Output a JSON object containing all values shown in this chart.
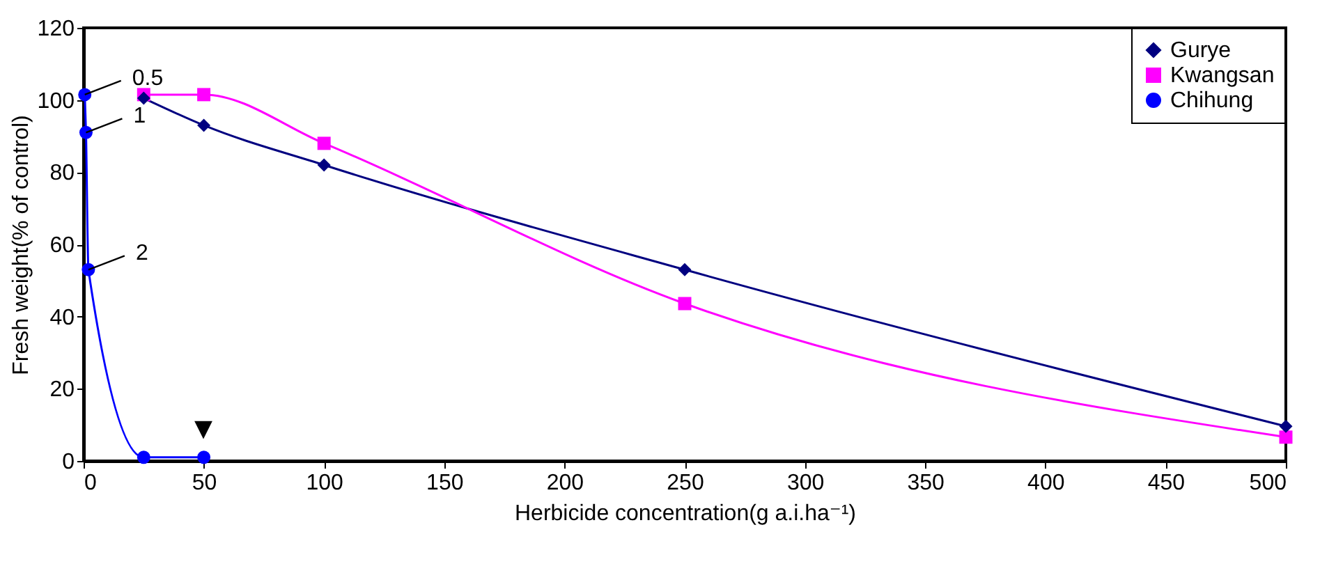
{
  "chart_data": {
    "type": "line",
    "xlabel": "Herbicide concentration(g a.i.ha⁻¹)",
    "ylabel": "Fresh weight(% of control)",
    "xlim": [
      0,
      500
    ],
    "xticks": [
      0,
      50,
      100,
      150,
      200,
      250,
      300,
      350,
      400,
      450,
      500
    ],
    "ylim": [
      0,
      120
    ],
    "yticks": [
      0,
      20,
      40,
      60,
      80,
      100,
      120
    ],
    "grid": false,
    "legend": "top right",
    "line_style": "solid",
    "series": [
      {
        "name": "Gurye",
        "color": "#000080",
        "marker": "diamond",
        "x": [
          25,
          50,
          100,
          250,
          500
        ],
        "values": [
          100.5,
          93,
          82,
          53,
          9.6
        ]
      },
      {
        "name": "Kwangsan",
        "color": "#ff00ff",
        "marker": "square",
        "x": [
          25,
          50,
          100,
          250,
          500
        ],
        "values": [
          101.5,
          101.5,
          88,
          43.6,
          6.6
        ]
      },
      {
        "name": "Chihung",
        "color": "#0000ff",
        "marker": "circle",
        "x": [
          0.5,
          1,
          2,
          25,
          50
        ],
        "values": [
          101.5,
          91,
          53,
          1,
          1
        ]
      }
    ],
    "annotations": [
      {
        "text": "0.5",
        "x": 0.5,
        "y": 101.5
      },
      {
        "text": "1",
        "x": 1,
        "y": 91
      },
      {
        "text": "2",
        "x": 2,
        "y": 53
      },
      "▼"
    ]
  }
}
